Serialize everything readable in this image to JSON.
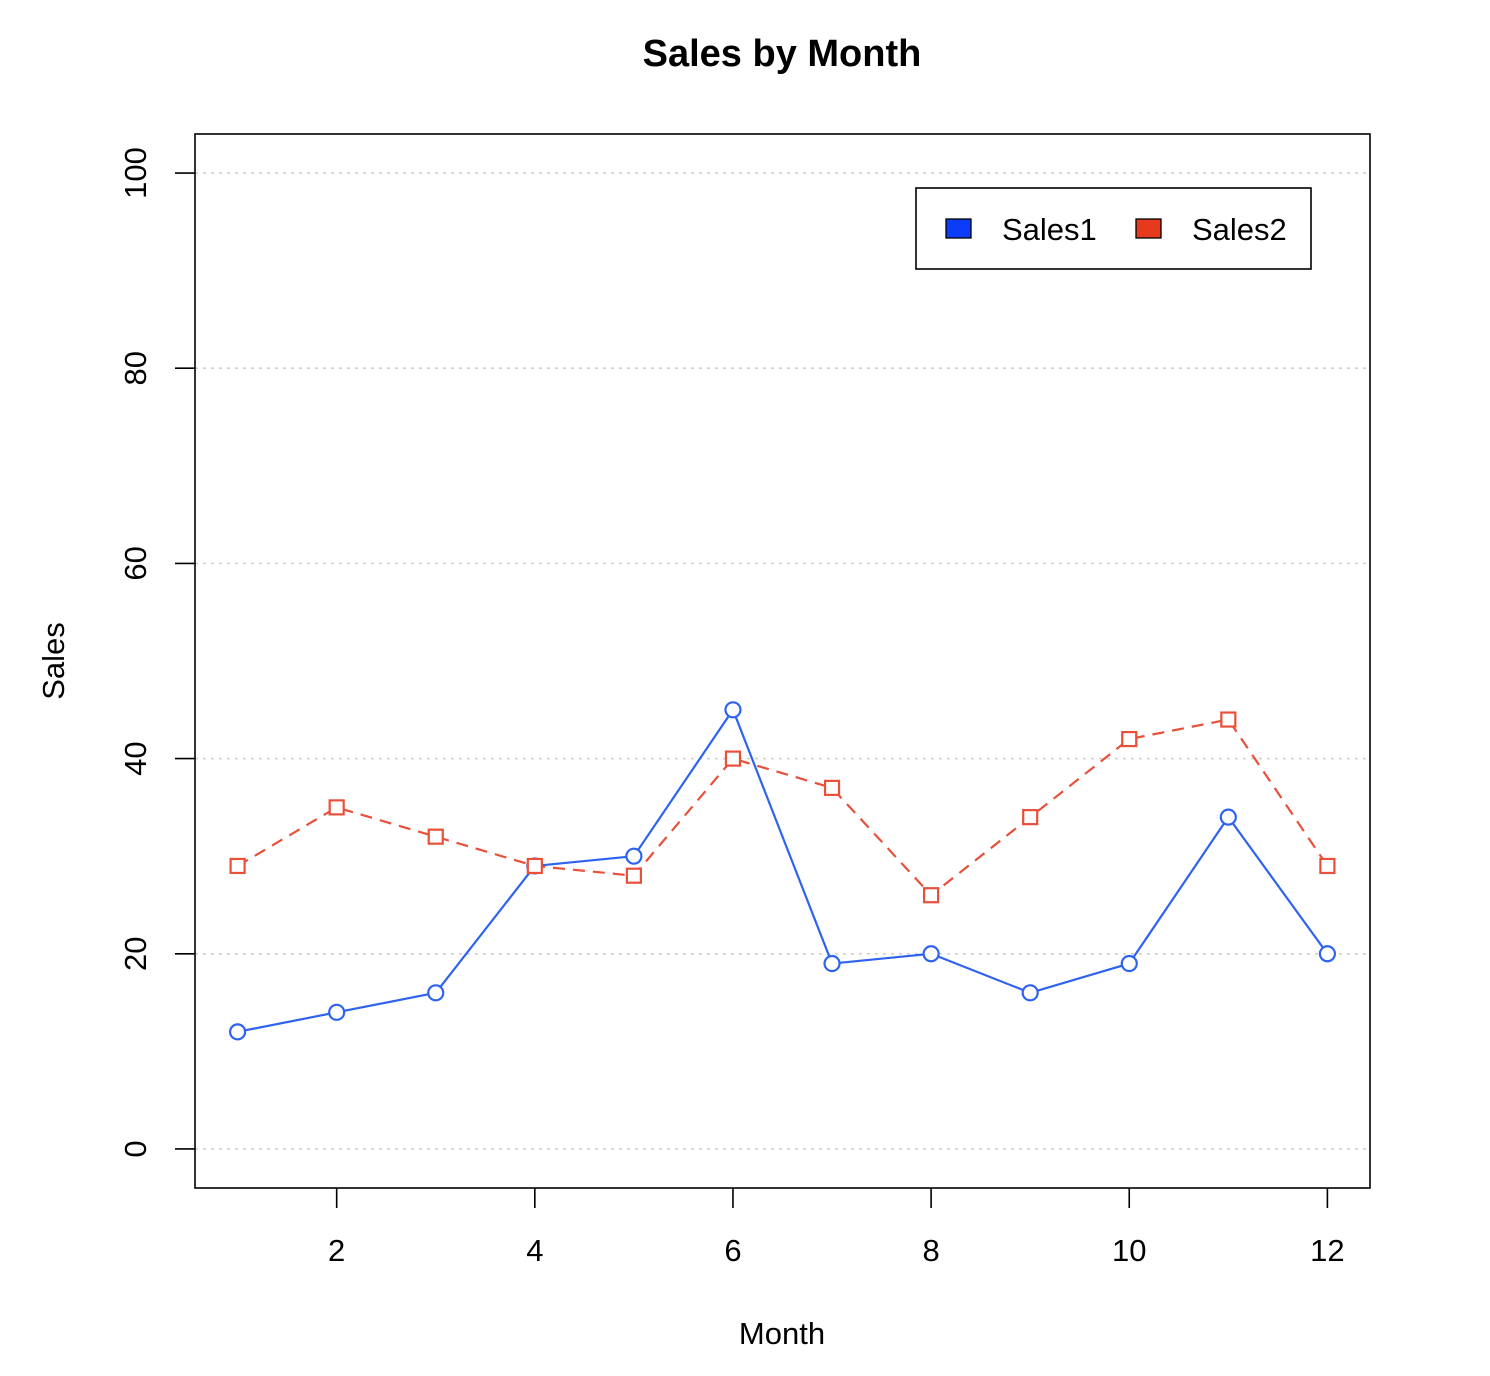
{
  "chart_data": {
    "type": "line",
    "title": "Sales by Month",
    "xlabel": "Month",
    "ylabel": "Sales",
    "xlim": [
      0.57,
      12.43
    ],
    "ylim": [
      -4,
      104
    ],
    "x_ticks": [
      2,
      4,
      6,
      8,
      10,
      12
    ],
    "y_ticks": [
      0,
      20,
      40,
      60,
      80,
      100
    ],
    "grid": "horizontal dotted",
    "legend_position": "top-right",
    "x": [
      1,
      2,
      3,
      4,
      5,
      6,
      7,
      8,
      9,
      10,
      11,
      12
    ],
    "series": [
      {
        "name": "Sales1",
        "color": "#2E62F0",
        "legend_color": "#0A3CFA",
        "marker": "circle",
        "line_style": "solid",
        "values": [
          12,
          14,
          16,
          29,
          30,
          45,
          19,
          20,
          16,
          19,
          34,
          20
        ]
      },
      {
        "name": "Sales2",
        "color": "#E8503A",
        "legend_color": "#E63A1E",
        "marker": "square",
        "line_style": "dashed",
        "values": [
          29,
          35,
          32,
          29,
          28,
          40,
          37,
          26,
          34,
          42,
          44,
          29
        ]
      }
    ]
  }
}
